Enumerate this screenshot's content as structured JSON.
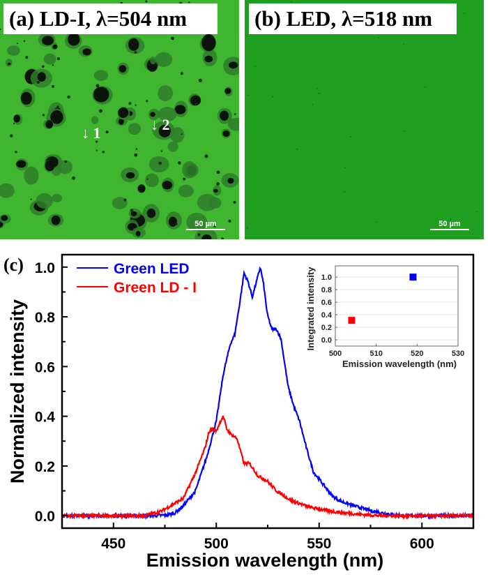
{
  "panel_a": {
    "label": "(a) LD-I, λ=504 nm",
    "scale_bar": "50 µm",
    "markers": [
      "1",
      "2"
    ],
    "background_color": "#3fb530"
  },
  "panel_b": {
    "label": "(b) LED, λ=518 nm",
    "scale_bar": "50 µm",
    "background_color": "#1f9f1f"
  },
  "chart_data": [
    {
      "type": "line",
      "panel_label": "(c)",
      "xlabel": "Emission wavelength (nm)",
      "ylabel": "Normalized intensity",
      "xlim": [
        425,
        625
      ],
      "ylim": [
        -0.05,
        1.05
      ],
      "xticks": [
        450,
        500,
        550,
        600
      ],
      "yticks": [
        0.0,
        0.2,
        0.4,
        0.6,
        0.8,
        1.0
      ],
      "ytick_labels": [
        "0.0",
        "0.2",
        "0.4",
        "0.6",
        "0.8",
        "1.0"
      ],
      "legend_position": "top-left",
      "grid": false,
      "series": [
        {
          "name": "Green LED",
          "color": "#0000ff",
          "x": [
            425,
            470,
            476,
            479.7,
            484,
            489.9,
            495.5,
            500,
            503.4,
            506.8,
            509,
            511.3,
            513.5,
            515.5,
            517.5,
            519.5,
            521.4,
            523,
            524.8,
            527,
            529.3,
            531.5,
            534.9,
            537.7,
            540.5,
            543.9,
            547.3,
            550.7,
            556.3,
            560,
            567,
            575,
            585,
            592,
            625
          ],
          "y": [
            0,
            0,
            0.003,
            0.01,
            0.04,
            0.1,
            0.24,
            0.38,
            0.57,
            0.69,
            0.73,
            0.85,
            0.976,
            0.94,
            0.88,
            0.94,
            1.0,
            0.93,
            0.81,
            0.75,
            0.75,
            0.71,
            0.52,
            0.44,
            0.38,
            0.27,
            0.175,
            0.14,
            0.08,
            0.06,
            0.04,
            0.02,
            0.005,
            0,
            0
          ]
        },
        {
          "name": "Green LD - I",
          "color": "#ff0000",
          "x": [
            425,
            465,
            473,
            484,
            490,
            494.4,
            496.6,
            498.5,
            500,
            502,
            503.4,
            505,
            506.8,
            510.1,
            513.5,
            516.2,
            520.3,
            524.7,
            529.3,
            536,
            545,
            556.3,
            570,
            580,
            625
          ],
          "y": [
            0,
            0,
            0.017,
            0.07,
            0.175,
            0.27,
            0.34,
            0.35,
            0.34,
            0.38,
            0.4,
            0.35,
            0.33,
            0.31,
            0.21,
            0.21,
            0.16,
            0.14,
            0.1,
            0.063,
            0.035,
            0.017,
            0.005,
            0,
            0
          ]
        }
      ]
    },
    {
      "type": "scatter",
      "role": "inset",
      "xlabel": "Emission wavelength (nm)",
      "ylabel": "Integrated intensity",
      "xlim": [
        500,
        530
      ],
      "ylim": [
        -0.1,
        1.18
      ],
      "xticks": [
        500,
        510,
        520,
        530
      ],
      "yticks": [
        0.0,
        0.2,
        0.4,
        0.6,
        0.8,
        1.0
      ],
      "ytick_labels": [
        "0.0",
        "0.2",
        "0.4",
        "0.6",
        "0.8",
        "1.0"
      ],
      "grid": true,
      "points": [
        {
          "x": 504,
          "y": 0.31,
          "color": "#ff0000",
          "marker": "square"
        },
        {
          "x": 519,
          "y": 1.0,
          "color": "#0000ff",
          "marker": "square"
        }
      ]
    }
  ]
}
